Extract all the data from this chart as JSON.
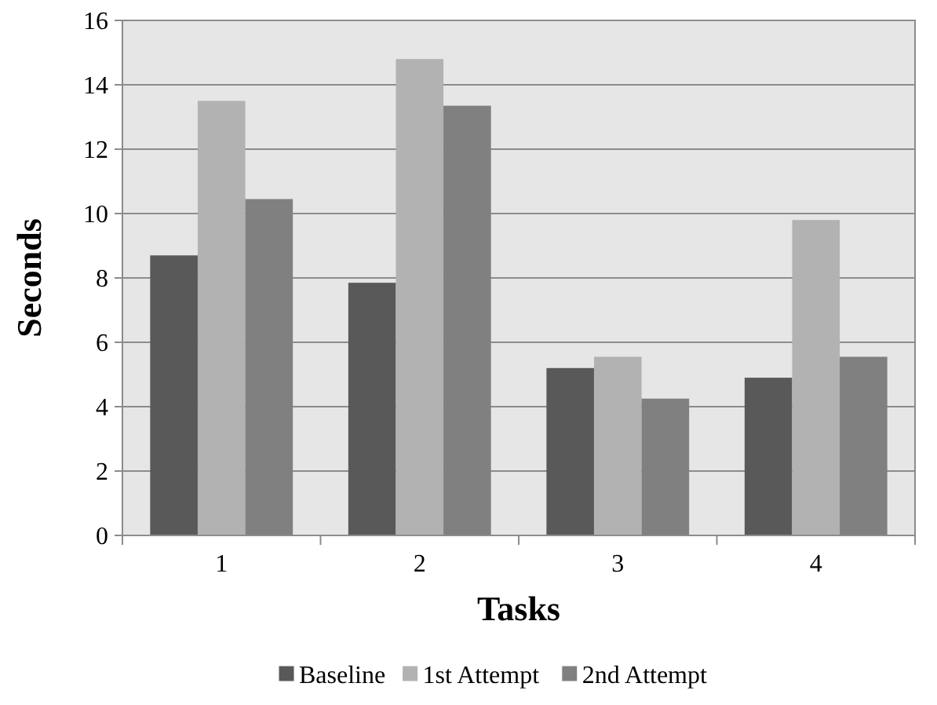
{
  "chart_data": {
    "type": "bar",
    "xlabel": "Tasks",
    "ylabel": "Seconds",
    "categories": [
      "1",
      "2",
      "3",
      "4"
    ],
    "series": [
      {
        "name": "Baseline",
        "color": "#595959",
        "values": [
          8.7,
          7.85,
          5.2,
          4.9
        ]
      },
      {
        "name": "1st Attempt",
        "color": "#b2b2b2",
        "values": [
          13.5,
          14.8,
          5.55,
          9.8
        ]
      },
      {
        "name": "2nd Attempt",
        "color": "#808080",
        "values": [
          10.45,
          13.35,
          4.25,
          5.55
        ]
      }
    ],
    "ylim": [
      0,
      16
    ],
    "yticks": [
      0,
      2,
      4,
      6,
      8,
      10,
      12,
      14,
      16
    ],
    "grid": "y",
    "legend": "bottom"
  }
}
